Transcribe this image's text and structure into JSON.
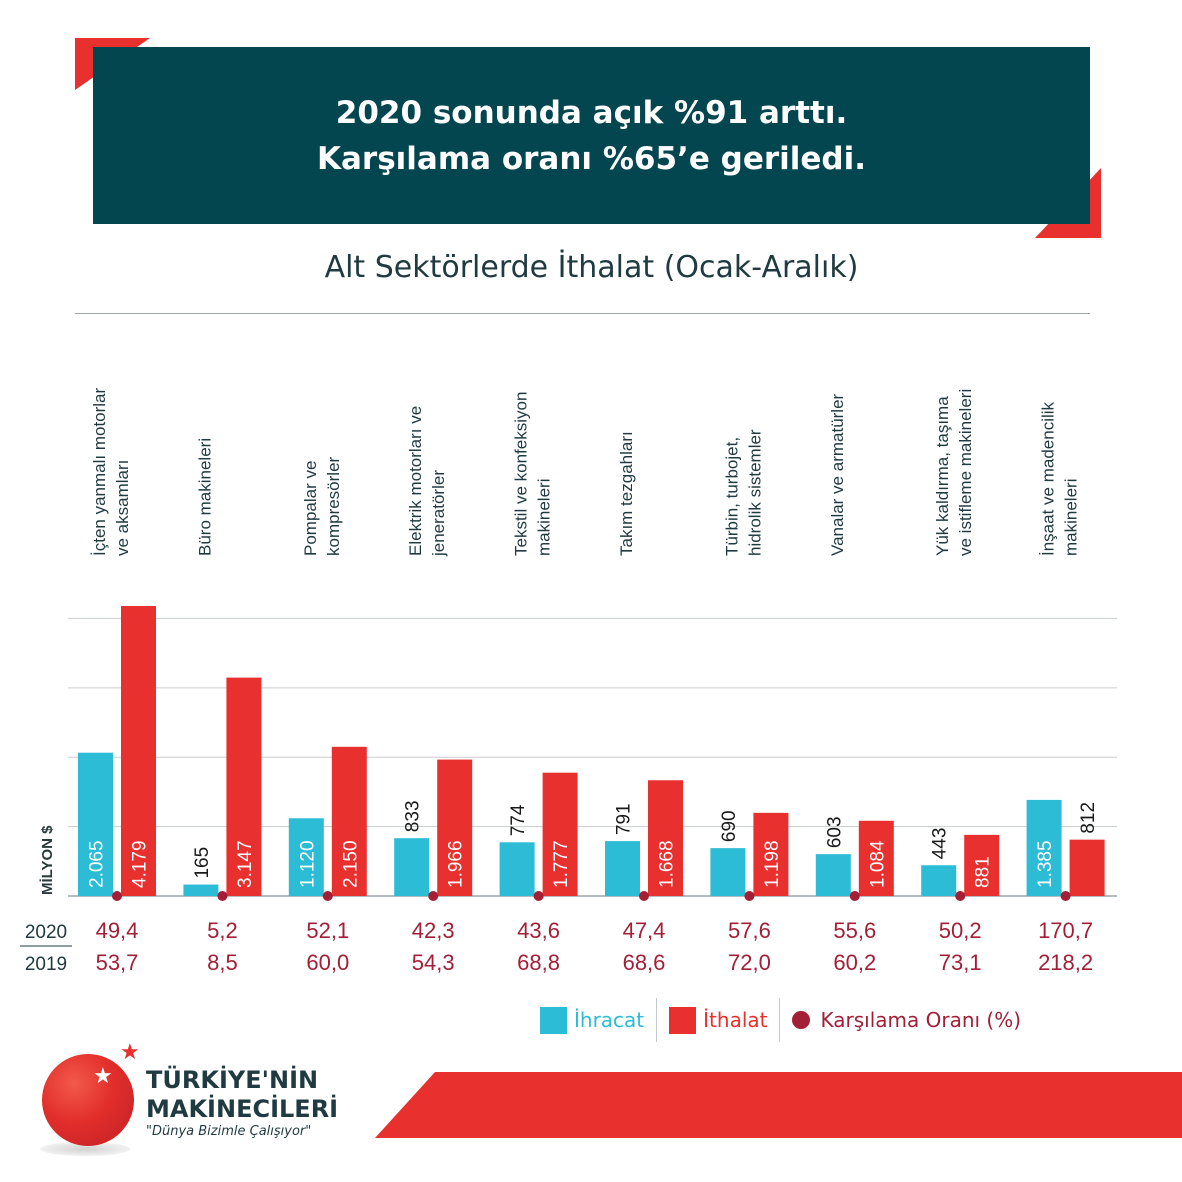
{
  "header": {
    "line1": "2020 sonunda açık %91 arttı.",
    "line2": "Karşılama oranı %65’e geriledi."
  },
  "chart_data": {
    "type": "bar",
    "title": "Alt Sektörlerde İthalat (Ocak-Aralık)",
    "ylabel": "MİLYON $",
    "grid": true,
    "legend_position": "bottom-right",
    "categories": [
      [
        "İçten yanmalı motorlar",
        "ve aksamları"
      ],
      [
        "Büro makineleri"
      ],
      [
        "Pompalar ve",
        "kompresörler"
      ],
      [
        "Elektrik motorları ve",
        "jeneratörler"
      ],
      [
        "Tekstil ve konfeksiyon",
        "makineleri"
      ],
      [
        "Takım tezgahları"
      ],
      [
        "Türbin, turbojet,",
        "hidrolik sistemler"
      ],
      [
        "Vanalar ve armatürler"
      ],
      [
        "Yük kaldırma, taşıma",
        "ve istifleme makineleri"
      ],
      [
        "İnşaat ve madencilik",
        "makineleri"
      ]
    ],
    "series": [
      {
        "name": "İhracat",
        "color": "#2dbcd6",
        "values": [
          2065,
          165,
          1120,
          833,
          774,
          791,
          690,
          603,
          443,
          1385
        ],
        "labels": [
          "2.065",
          "165",
          "1.120",
          "833",
          "774",
          "791",
          "690",
          "603",
          "443",
          "1.385"
        ]
      },
      {
        "name": "İthalat",
        "color": "#e8312f",
        "values": [
          4179,
          3147,
          2150,
          1966,
          1777,
          1668,
          1198,
          1084,
          881,
          812
        ],
        "labels": [
          "4.179",
          "3.147",
          "2.150",
          "1.966",
          "1.777",
          "1.668",
          "1.198",
          "1.084",
          "881",
          "812"
        ]
      }
    ],
    "coverage": {
      "name": "Karşılama Oranı (%)",
      "color": "#a31f37",
      "rows": [
        {
          "year": "2020",
          "values": [
            "49,4",
            "5,2",
            "52,1",
            "42,3",
            "43,6",
            "47,4",
            "57,6",
            "55,6",
            "50,2",
            "170,7"
          ]
        },
        {
          "year": "2019",
          "values": [
            "53,7",
            "8,5",
            "60,0",
            "54,3",
            "68,8",
            "68,6",
            "72,0",
            "60,2",
            "73,1",
            "218,2"
          ]
        }
      ]
    }
  },
  "legend": {
    "export": "İhracat",
    "import": "İthalat",
    "ratio": "Karşılama Oranı (%)"
  },
  "brand": {
    "line1": "TÜRKİYE'NİN",
    "line2": "MAKİNECİLERİ",
    "slogan": "\"Dünya Bizimle Çalışıyor\""
  }
}
